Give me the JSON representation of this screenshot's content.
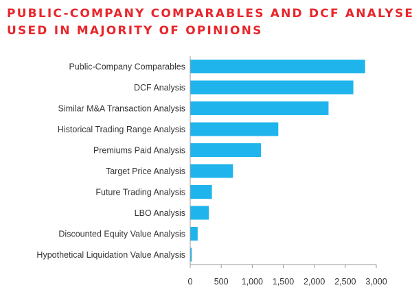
{
  "header": {
    "title_line1": "PUBLIC-COMPANY COMPARABLES AND DCF ANALYSES",
    "title_line2": "USED IN MAJORITY OF OPINIONS"
  },
  "colors": {
    "title": "#e8262b",
    "bar": "#1fb5ec",
    "axis": "#999999",
    "text": "#333333"
  },
  "chart_data": {
    "type": "bar",
    "orientation": "horizontal",
    "title": "PUBLIC-COMPANY COMPARABLES AND DCF ANALYSES USED IN MAJORITY OF OPINIONS",
    "xlabel": "",
    "ylabel": "",
    "categories": [
      "Public-Company Comparables",
      "DCF Analysis",
      "Similar M&A Transaction Analysis",
      "Historical Trading Range Analysis",
      "Premiums Paid Analysis",
      "Target Price Analysis",
      "Future Trading Analysis",
      "LBO Analysis",
      "Discounted Equity Value Analysis",
      "Hypothetical Liquidation Value Analysis"
    ],
    "values": [
      2820,
      2630,
      2230,
      1420,
      1140,
      690,
      350,
      300,
      120,
      25
    ],
    "xlim": [
      0,
      3000
    ],
    "xticks": [
      0,
      500,
      1000,
      1500,
      2000,
      2500,
      3000
    ],
    "xtick_labels": [
      "0",
      "500",
      "1,000",
      "1,500",
      "2,000",
      "2,500",
      "3,000"
    ],
    "grid": false,
    "legend": "none"
  }
}
